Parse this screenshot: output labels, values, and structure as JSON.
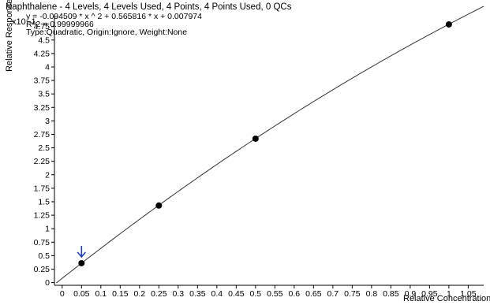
{
  "title": "Naphthalene - 4 Levels, 4 Levels Used, 4 Points, 4 Points Used, 0 QCs",
  "y_scale_label": "x10 -1",
  "equation": {
    "line1": "y = -0.094509 * x ^ 2  + 0.565816 * x  + 0.007974",
    "line2": "R^2 = 0.99999966",
    "line3": "Type:Quadratic, Origin:Ignore, Weight:None"
  },
  "chart_data": {
    "type": "scatter",
    "title": "Naphthalene - 4 Levels, 4 Levels Used, 4 Points, 4 Points Used, 0 QCs",
    "xlabel": "Relative Concentration",
    "ylabel": "Relative Responses",
    "y_scale_multiplier": "x10 -1",
    "xlim": [
      -0.02,
      1.09
    ],
    "ylim": [
      -0.05,
      4.95
    ],
    "x_ticks": [
      "0",
      "0.05",
      "0.1",
      "0.15",
      "0.2",
      "0.25",
      "0.3",
      "0.35",
      "0.4",
      "0.45",
      "0.5",
      "0.55",
      "0.6",
      "0.65",
      "0.7",
      "0.75",
      "0.8",
      "0.85",
      "0.9",
      "0.95",
      "1",
      "1.05"
    ],
    "y_ticks": [
      "0",
      "0.25",
      "0.5",
      "0.75",
      "1",
      "1.25",
      "1.5",
      "1.75",
      "2",
      "2.25",
      "2.5",
      "2.75",
      "3",
      "3.25",
      "3.5",
      "3.75",
      "4",
      "4.25",
      "4.5",
      "4.75"
    ],
    "points": [
      {
        "x": 0.05,
        "y": 0.36
      },
      {
        "x": 0.25,
        "y": 1.43
      },
      {
        "x": 0.5,
        "y": 2.67
      },
      {
        "x": 1.0,
        "y": 4.79
      }
    ],
    "fit": {
      "type": "quadratic",
      "a": -0.094509,
      "b": 0.565816,
      "c": 0.007974,
      "x_range": [
        -0.015,
        1.09
      ]
    },
    "marker_arrow_at_x": 0.05,
    "colors": {
      "axis": "#000000",
      "curve": "#333333",
      "points": "#000000",
      "arrow": "#1f3fb5"
    }
  }
}
